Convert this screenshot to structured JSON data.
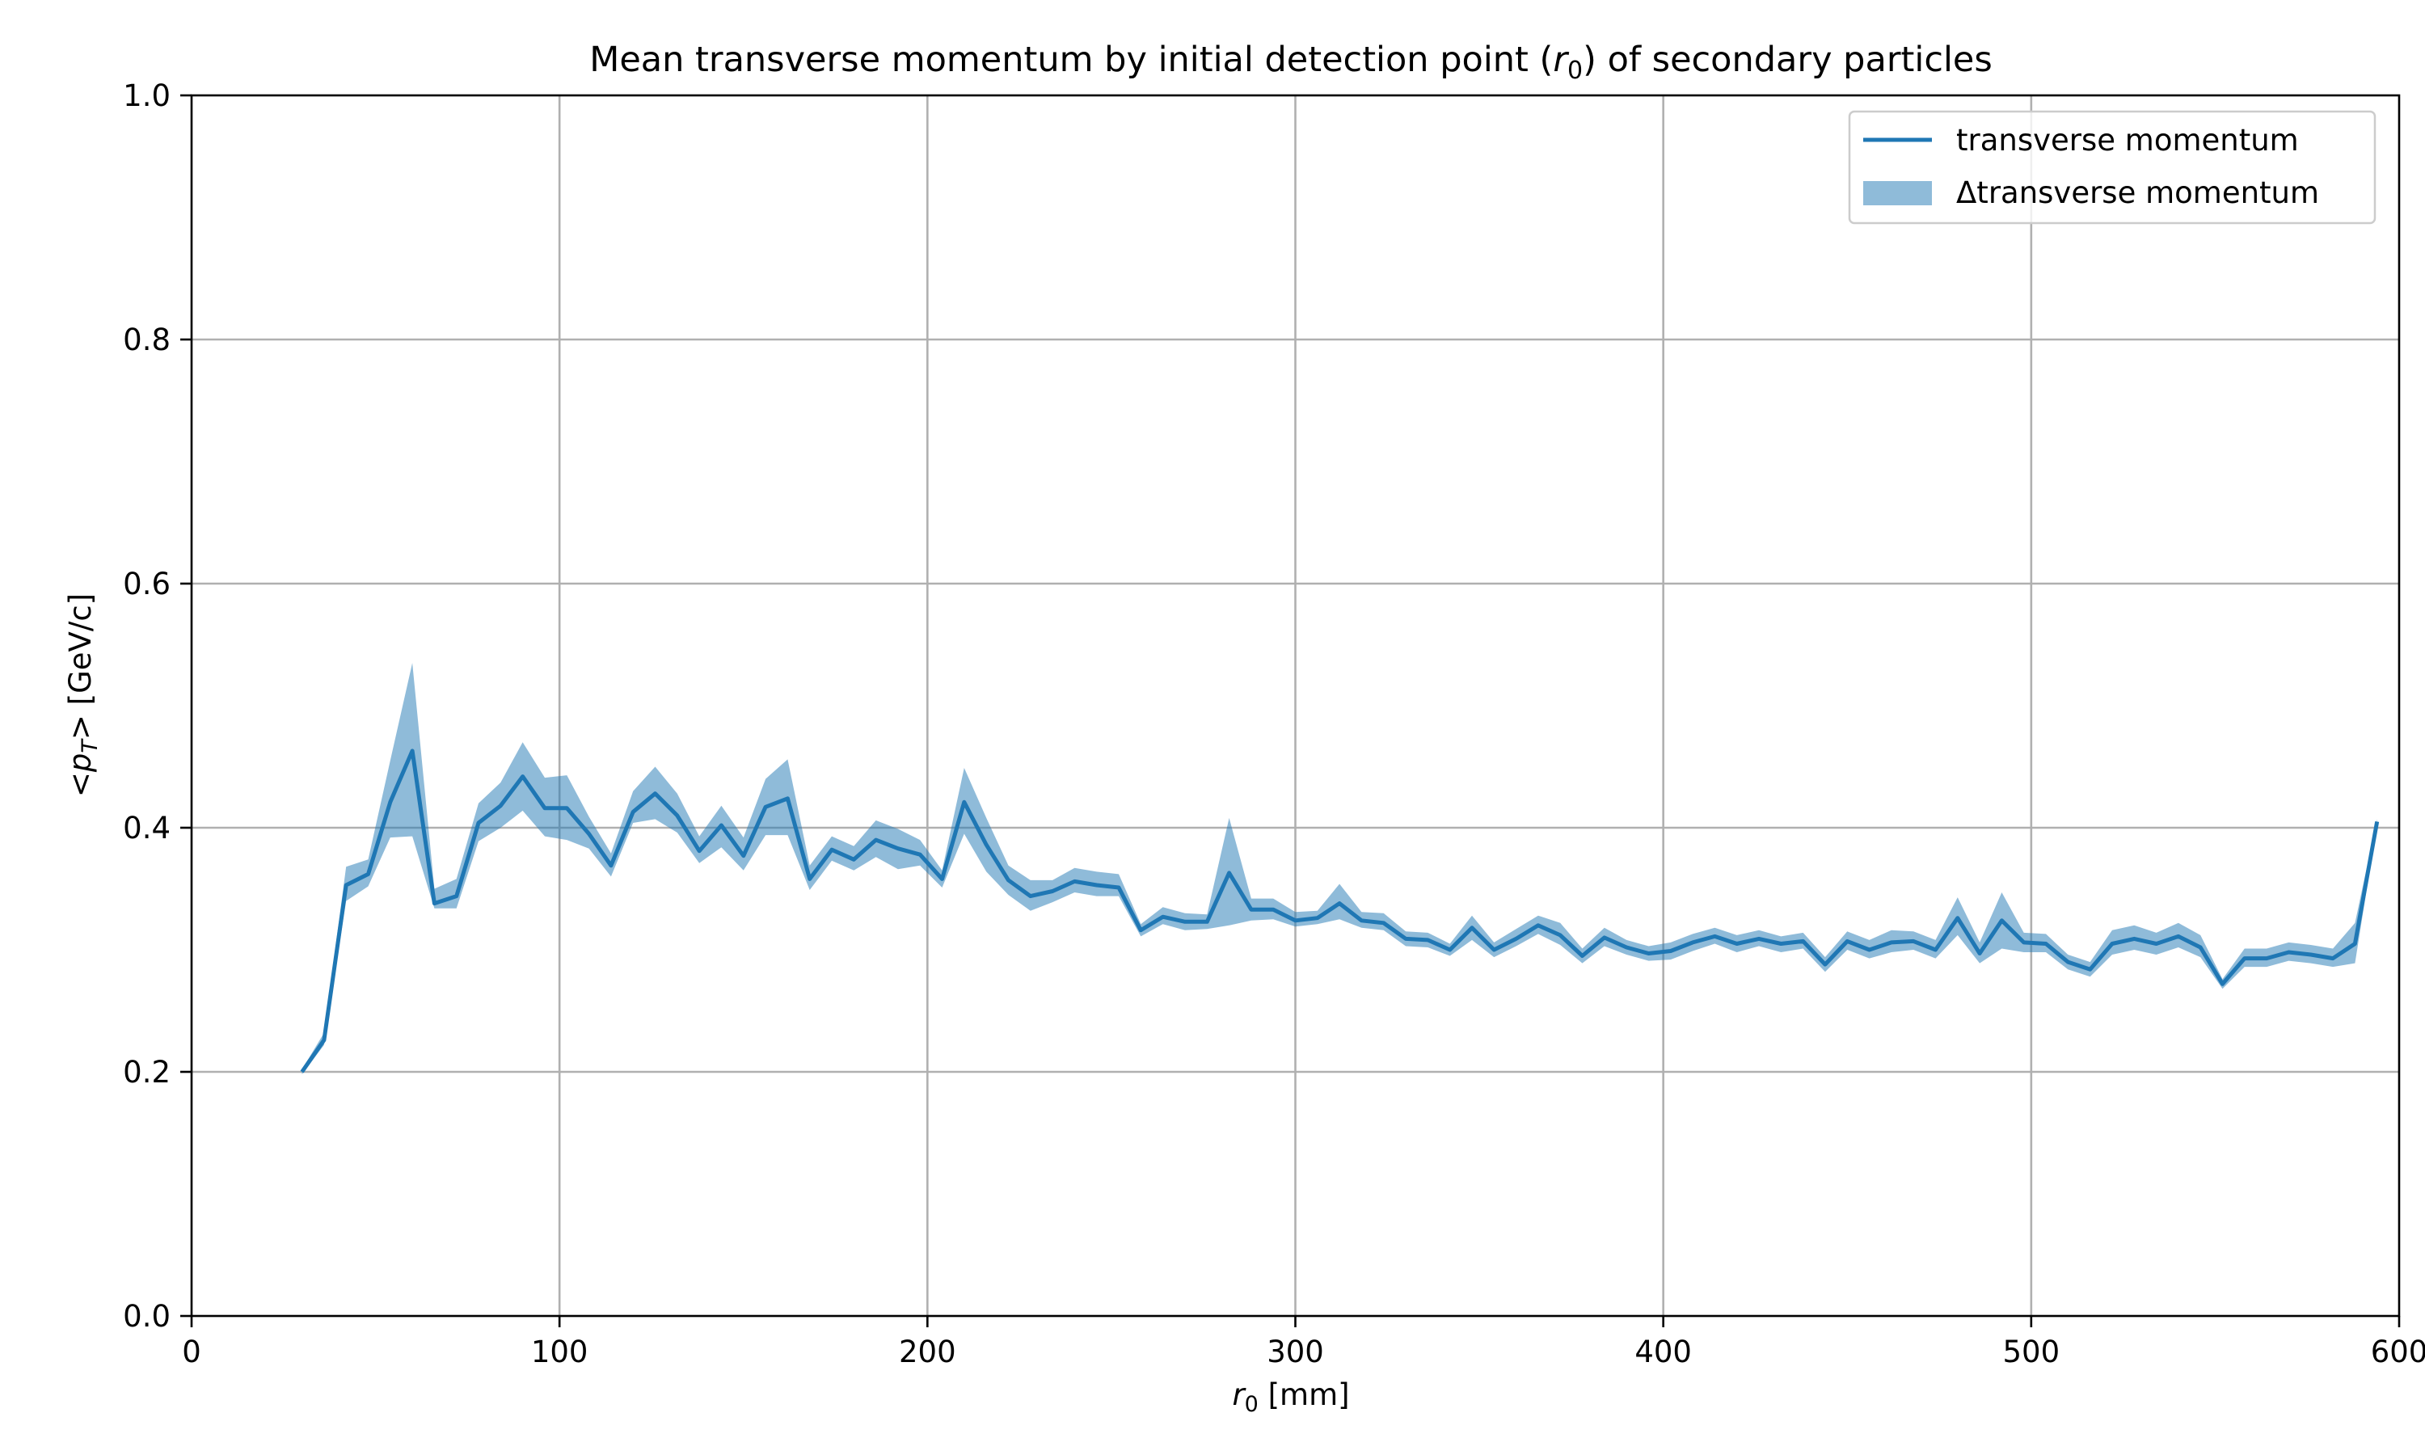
{
  "chart_data": {
    "type": "line",
    "title": "Mean transverse momentum by initial detection point (r₀) of secondary particles",
    "title_parts": {
      "before": "Mean transverse momentum by initial detection point (",
      "var": "r",
      "sub": "0",
      "after": ") of secondary particles"
    },
    "xlabel": "r₀ [mm]",
    "xlabel_parts": {
      "var": "r",
      "sub": "0",
      "after": " [mm]"
    },
    "ylabel": "<p_T> [GeV/c]",
    "ylabel_parts": {
      "before": "<",
      "var": "p",
      "sub": "T",
      "after": "> [GeV/c]"
    },
    "xlim": [
      0,
      600
    ],
    "ylim": [
      0.0,
      1.0
    ],
    "xticks": [
      0,
      100,
      200,
      300,
      400,
      500,
      600
    ],
    "yticks": [
      0.0,
      0.2,
      0.4,
      0.6,
      0.8,
      1.0
    ],
    "xtick_labels": [
      "0",
      "100",
      "200",
      "300",
      "400",
      "500",
      "600"
    ],
    "ytick_labels": [
      "0.0",
      "0.2",
      "0.4",
      "0.6",
      "0.8",
      "1.0"
    ],
    "grid": true,
    "legend_position": "top-right",
    "series": [
      {
        "name": "transverse momentum",
        "kind": "line",
        "color": "#1f77b4",
        "x": [
          30,
          36,
          42,
          48,
          54,
          60,
          66,
          72,
          78,
          84,
          90,
          96,
          102,
          108,
          114,
          120,
          126,
          132,
          138,
          144,
          150,
          156,
          162,
          168,
          174,
          180,
          186,
          192,
          198,
          204,
          210,
          216,
          222,
          228,
          234,
          240,
          246,
          252,
          258,
          264,
          270,
          276,
          282,
          288,
          294,
          300,
          306,
          312,
          318,
          324,
          330,
          336,
          342,
          348,
          354,
          360,
          366,
          372,
          378,
          384,
          390,
          396,
          402,
          408,
          414,
          420,
          426,
          432,
          438,
          444,
          450,
          456,
          462,
          468,
          474,
          480,
          486,
          492,
          498,
          504,
          510,
          516,
          522,
          528,
          534,
          540,
          546,
          552,
          558,
          564,
          570,
          576,
          582,
          588,
          594
        ],
        "y": [
          0.2,
          0.226,
          0.353,
          0.362,
          0.421,
          0.463,
          0.338,
          0.344,
          0.404,
          0.418,
          0.442,
          0.416,
          0.416,
          0.395,
          0.369,
          0.413,
          0.428,
          0.41,
          0.381,
          0.402,
          0.377,
          0.417,
          0.424,
          0.358,
          0.382,
          0.374,
          0.39,
          0.383,
          0.378,
          0.358,
          0.421,
          0.386,
          0.357,
          0.344,
          0.348,
          0.356,
          0.353,
          0.351,
          0.316,
          0.327,
          0.323,
          0.323,
          0.363,
          0.333,
          0.333,
          0.324,
          0.326,
          0.338,
          0.324,
          0.322,
          0.309,
          0.308,
          0.3,
          0.318,
          0.3,
          0.309,
          0.32,
          0.312,
          0.295,
          0.31,
          0.302,
          0.297,
          0.299,
          0.306,
          0.311,
          0.305,
          0.309,
          0.305,
          0.307,
          0.288,
          0.307,
          0.3,
          0.306,
          0.307,
          0.3,
          0.326,
          0.297,
          0.324,
          0.306,
          0.305,
          0.29,
          0.284,
          0.305,
          0.309,
          0.305,
          0.311,
          0.302,
          0.272,
          0.293,
          0.293,
          0.298,
          0.296,
          0.293,
          0.305,
          0.405
        ]
      },
      {
        "name": "Δtransverse momentum",
        "kind": "band",
        "color": "#1f77b4",
        "opacity": 0.5,
        "x": [
          30,
          36,
          42,
          48,
          54,
          60,
          66,
          72,
          78,
          84,
          90,
          96,
          102,
          108,
          114,
          120,
          126,
          132,
          138,
          144,
          150,
          156,
          162,
          168,
          174,
          180,
          186,
          192,
          198,
          204,
          210,
          216,
          222,
          228,
          234,
          240,
          246,
          252,
          258,
          264,
          270,
          276,
          282,
          288,
          294,
          300,
          306,
          312,
          318,
          324,
          330,
          336,
          342,
          348,
          354,
          360,
          366,
          372,
          378,
          384,
          390,
          396,
          402,
          408,
          414,
          420,
          426,
          432,
          438,
          444,
          450,
          456,
          462,
          468,
          474,
          480,
          486,
          492,
          498,
          504,
          510,
          516,
          522,
          528,
          534,
          540,
          546,
          552,
          558,
          564,
          570,
          576,
          582,
          588,
          594
        ],
        "lower": [
          0.198,
          0.222,
          0.34,
          0.352,
          0.392,
          0.393,
          0.334,
          0.334,
          0.389,
          0.4,
          0.414,
          0.393,
          0.39,
          0.383,
          0.36,
          0.404,
          0.407,
          0.396,
          0.371,
          0.384,
          0.365,
          0.394,
          0.394,
          0.349,
          0.373,
          0.365,
          0.376,
          0.366,
          0.369,
          0.351,
          0.395,
          0.364,
          0.345,
          0.332,
          0.339,
          0.347,
          0.344,
          0.344,
          0.311,
          0.321,
          0.316,
          0.317,
          0.32,
          0.324,
          0.325,
          0.319,
          0.321,
          0.325,
          0.318,
          0.316,
          0.303,
          0.302,
          0.295,
          0.308,
          0.294,
          0.303,
          0.313,
          0.304,
          0.289,
          0.303,
          0.296,
          0.291,
          0.292,
          0.299,
          0.305,
          0.298,
          0.303,
          0.298,
          0.301,
          0.282,
          0.3,
          0.293,
          0.298,
          0.3,
          0.293,
          0.312,
          0.289,
          0.301,
          0.298,
          0.298,
          0.284,
          0.278,
          0.296,
          0.3,
          0.296,
          0.302,
          0.294,
          0.268,
          0.286,
          0.286,
          0.291,
          0.289,
          0.286,
          0.289,
          0.403
        ],
        "upper": [
          0.202,
          0.232,
          0.368,
          0.374,
          0.455,
          0.535,
          0.35,
          0.358,
          0.42,
          0.437,
          0.47,
          0.441,
          0.443,
          0.409,
          0.379,
          0.43,
          0.45,
          0.428,
          0.393,
          0.418,
          0.392,
          0.44,
          0.456,
          0.369,
          0.393,
          0.385,
          0.406,
          0.399,
          0.39,
          0.365,
          0.449,
          0.408,
          0.369,
          0.357,
          0.357,
          0.367,
          0.364,
          0.362,
          0.321,
          0.335,
          0.33,
          0.329,
          0.408,
          0.342,
          0.342,
          0.331,
          0.332,
          0.354,
          0.331,
          0.33,
          0.315,
          0.314,
          0.305,
          0.328,
          0.306,
          0.317,
          0.328,
          0.322,
          0.301,
          0.318,
          0.308,
          0.303,
          0.306,
          0.313,
          0.318,
          0.312,
          0.316,
          0.311,
          0.314,
          0.294,
          0.315,
          0.308,
          0.316,
          0.315,
          0.308,
          0.343,
          0.306,
          0.347,
          0.314,
          0.313,
          0.296,
          0.29,
          0.316,
          0.32,
          0.314,
          0.322,
          0.312,
          0.276,
          0.301,
          0.301,
          0.306,
          0.304,
          0.301,
          0.322,
          0.407
        ]
      }
    ]
  }
}
